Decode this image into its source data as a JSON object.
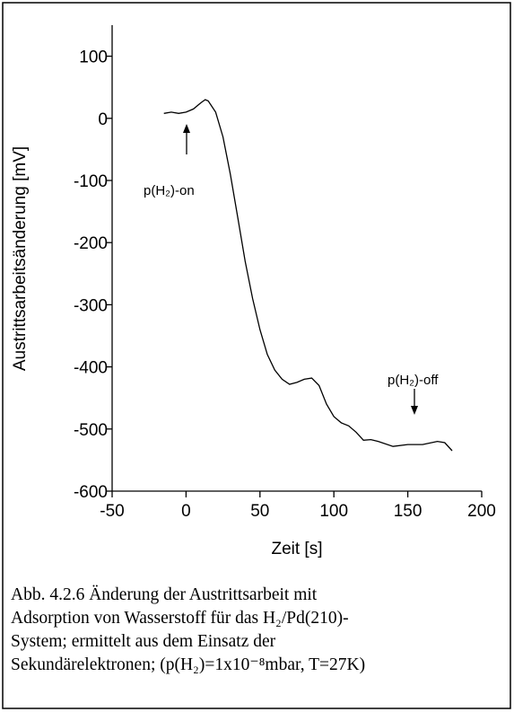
{
  "chart_data": {
    "type": "line",
    "xlabel": "Zeit [s]",
    "ylabel": "Austrittsarbeitsänderung [mV]",
    "x": [
      -15,
      -10,
      -5,
      0,
      5,
      10,
      13,
      15,
      20,
      25,
      30,
      35,
      40,
      45,
      50,
      55,
      60,
      65,
      70,
      75,
      80,
      85,
      90,
      95,
      100,
      105,
      110,
      115,
      120,
      125,
      130,
      140,
      150,
      160,
      170,
      175,
      180
    ],
    "values": [
      8,
      10,
      8,
      10,
      15,
      25,
      30,
      28,
      10,
      -30,
      -90,
      -160,
      -230,
      -290,
      -340,
      -380,
      -405,
      -420,
      -428,
      -425,
      -420,
      -418,
      -430,
      -460,
      -480,
      -490,
      -495,
      -505,
      -518,
      -517,
      -520,
      -528,
      -525,
      -525,
      -520,
      -522,
      -535
    ],
    "color": "#000000",
    "xlim": [
      -50,
      200
    ],
    "xticks": [
      -50,
      0,
      50,
      100,
      150,
      200
    ],
    "ylim": [
      -600,
      150
    ],
    "yticks": [
      -600,
      -500,
      -400,
      -300,
      -200,
      -100,
      0,
      100
    ],
    "annotations": [
      "p(H₂)-on",
      "p(H₂)-off"
    ],
    "caption": [
      "Abb. 4.2.6 Änderung der Austrittsarbeit mit",
      "Adsorption von Wasserstoff für das H₂/Pd(210)-",
      "System; ermittelt aus dem Einsatz der",
      "Sekundärelektronen; (p(H₂)=1x10⁻⁸mbar, T=27K)"
    ]
  }
}
